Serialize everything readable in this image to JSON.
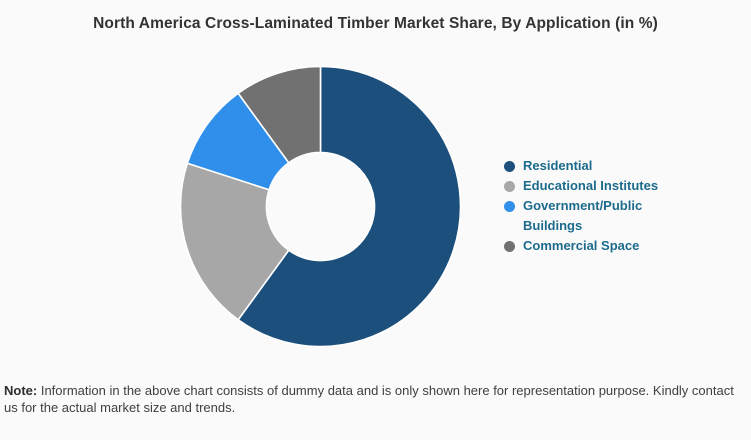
{
  "page": {
    "background": "#fafafa"
  },
  "title": "North America Cross-Laminated Timber Market Share, By Application (in %)",
  "chart_data": {
    "type": "pie",
    "subtype": "donut",
    "title": "North America Cross-Laminated Timber Market Share, By Application (in %)",
    "unit": "%",
    "categories": [
      "Residential",
      "Educational Institutes",
      "Government/Public Buildings",
      "Commercial Space"
    ],
    "values": [
      60,
      20,
      10,
      10
    ],
    "colors": [
      "#1c4f7c",
      "#a7a7a7",
      "#2f8fea",
      "#717171"
    ],
    "start_angle_deg": 0,
    "direction": "clockwise",
    "inner_radius_ratio": 0.386,
    "outer_radius_px": 140,
    "separator_color": "#ffffff",
    "legend_position": "right",
    "data_labels": "none"
  },
  "legend": {
    "items": [
      {
        "label": "Residential",
        "color": "#1c4f7c"
      },
      {
        "label": "Educational Institutes",
        "color": "#a7a7a7"
      },
      {
        "label": "Government/Public Buildings",
        "color": "#2f8fea"
      },
      {
        "label": "Commercial Space",
        "color": "#717171"
      }
    ],
    "text_color": "#1d6b8c"
  },
  "note": {
    "label": "Note:",
    "text": "Information in the above chart consists of dummy data and is only shown here for representation purpose. Kindly contact us for the actual market size and trends."
  }
}
